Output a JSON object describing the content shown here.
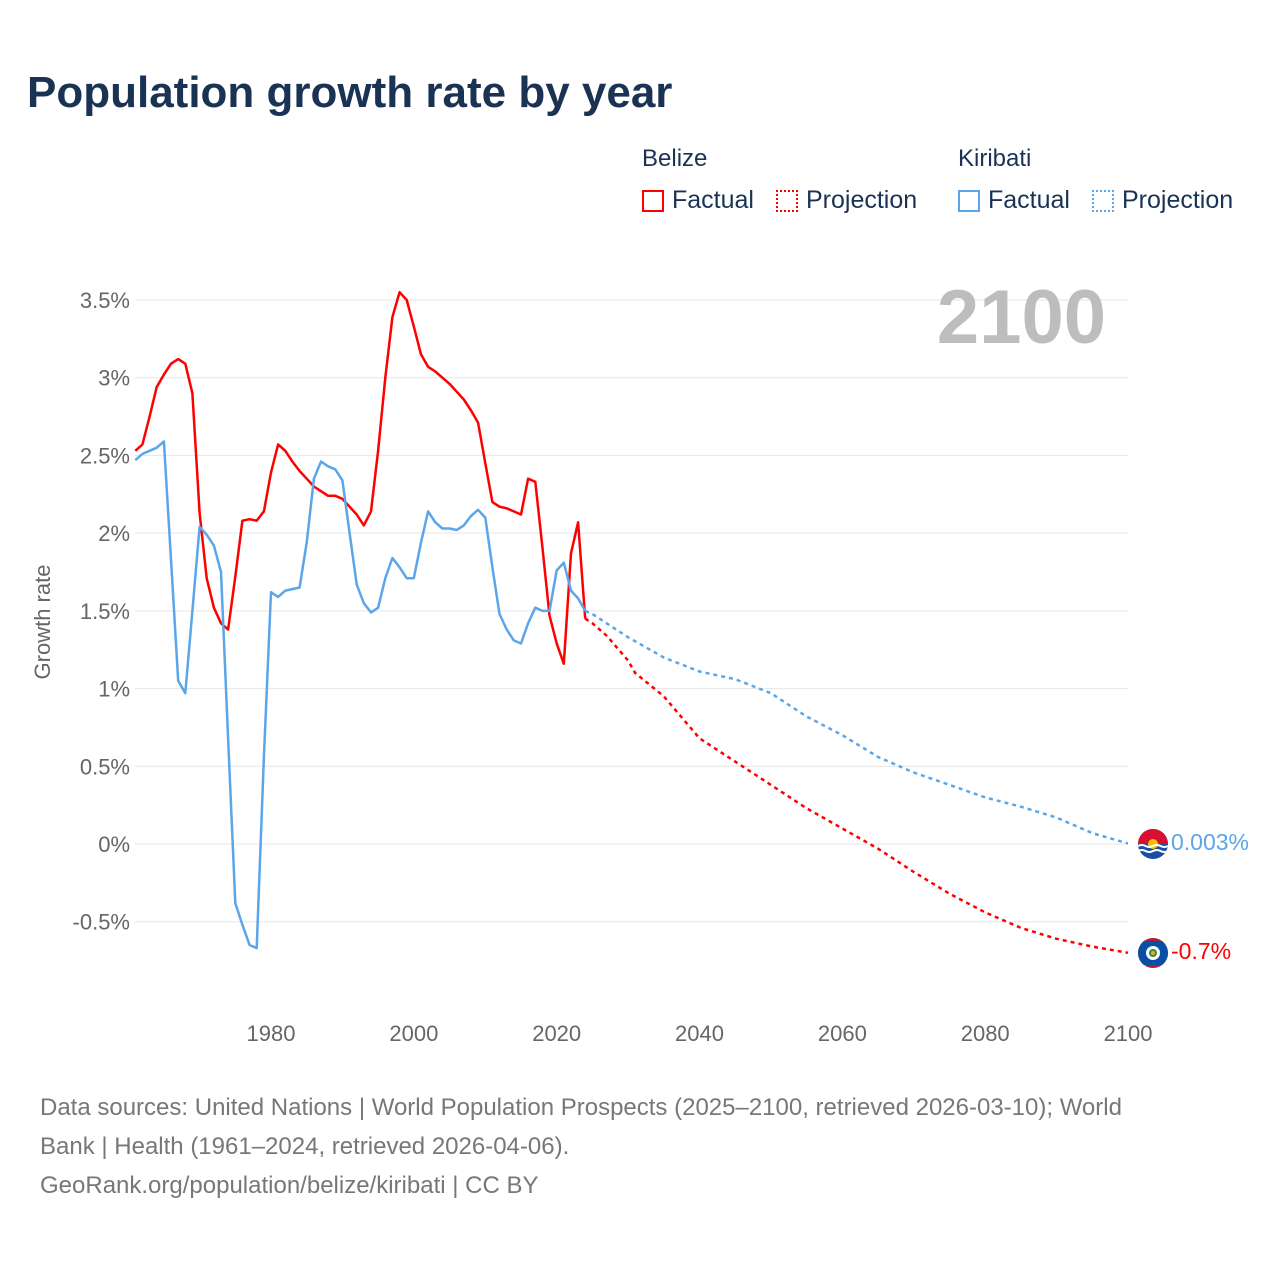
{
  "title": "Population growth rate by year",
  "legend": {
    "groups": [
      {
        "name": "Belize",
        "factual": "Factual",
        "projection": "Projection",
        "color": "#ff0000"
      },
      {
        "name": "Kiribati",
        "factual": "Factual",
        "projection": "Projection",
        "color": "#5ba6ea"
      }
    ]
  },
  "footer": {
    "line1": "Data sources: United Nations | World Population Prospects (2025–2100, retrieved 2026-03-10); World",
    "line2": "Bank | Health (1961–2024, retrieved 2026-04-06).",
    "line3": "GeoRank.org/population/belize/kiribati | CC BY"
  },
  "chart_data": {
    "type": "line",
    "title": "Population growth rate by year",
    "ylabel": "Growth rate",
    "xlabel": "",
    "year_label": "2100",
    "xlim": [
      1961,
      2100
    ],
    "ylim": [
      -0.85,
      3.6
    ],
    "xticks": [
      1980,
      2000,
      2020,
      2040,
      2060,
      2080,
      2100
    ],
    "yticks": [
      -0.5,
      0,
      0.5,
      1,
      1.5,
      2,
      2.5,
      3,
      3.5
    ],
    "ytick_labels": [
      "-0.5%",
      "0%",
      "0.5%",
      "1%",
      "1.5%",
      "2%",
      "2.5%",
      "3%",
      "3.5%"
    ],
    "grid": true,
    "legend_position": "top-right",
    "series": [
      {
        "name": "Belize",
        "color": "#ff0000",
        "end_label": "-0.7%",
        "factual_start": 1961,
        "factual": [
          2.53,
          2.57,
          2.75,
          2.94,
          3.02,
          3.09,
          3.12,
          3.09,
          2.9,
          2.13,
          1.71,
          1.52,
          1.42,
          1.38,
          1.72,
          2.08,
          2.09,
          2.08,
          2.14,
          2.39,
          2.57,
          2.53,
          2.46,
          2.4,
          2.35,
          2.3,
          2.27,
          2.24,
          2.24,
          2.22,
          2.17,
          2.12,
          2.05,
          2.14,
          2.53,
          3.0,
          3.39,
          3.55,
          3.5,
          3.33,
          3.15,
          3.07,
          3.04,
          3.0,
          2.96,
          2.91,
          2.86,
          2.79,
          2.71,
          2.45,
          2.2,
          2.17,
          2.16,
          2.14,
          2.12,
          2.35,
          2.33,
          1.91,
          1.47,
          1.29,
          1.16,
          1.87,
          2.07,
          1.45
        ],
        "projection": [
          [
            2024,
            1.45
          ],
          [
            2025,
            1.42
          ],
          [
            2027,
            1.34
          ],
          [
            2030,
            1.18
          ],
          [
            2031,
            1.1
          ],
          [
            2035,
            0.95
          ],
          [
            2040,
            0.68
          ],
          [
            2045,
            0.53
          ],
          [
            2050,
            0.38
          ],
          [
            2055,
            0.23
          ],
          [
            2060,
            0.1
          ],
          [
            2065,
            -0.03
          ],
          [
            2070,
            -0.18
          ],
          [
            2075,
            -0.32
          ],
          [
            2080,
            -0.44
          ],
          [
            2085,
            -0.54
          ],
          [
            2090,
            -0.61
          ],
          [
            2095,
            -0.66
          ],
          [
            2100,
            -0.7
          ]
        ]
      },
      {
        "name": "Kiribati",
        "color": "#5ba6ea",
        "end_label": "0.003%",
        "factual_start": 1961,
        "factual": [
          2.47,
          2.51,
          2.53,
          2.55,
          2.59,
          1.83,
          1.05,
          0.97,
          1.5,
          2.04,
          1.99,
          1.92,
          1.75,
          0.68,
          -0.38,
          -0.52,
          -0.65,
          -0.67,
          0.56,
          1.62,
          1.59,
          1.63,
          1.64,
          1.65,
          1.94,
          2.35,
          2.46,
          2.43,
          2.41,
          2.34,
          2.0,
          1.67,
          1.55,
          1.49,
          1.52,
          1.71,
          1.84,
          1.78,
          1.71,
          1.71,
          1.94,
          2.14,
          2.07,
          2.03,
          2.03,
          2.02,
          2.05,
          2.11,
          2.15,
          2.1,
          1.78,
          1.48,
          1.38,
          1.31,
          1.29,
          1.42,
          1.52,
          1.5,
          1.5,
          1.76,
          1.81,
          1.63,
          1.58,
          1.5
        ],
        "projection": [
          [
            2024,
            1.5
          ],
          [
            2025,
            1.48
          ],
          [
            2030,
            1.33
          ],
          [
            2035,
            1.2
          ],
          [
            2040,
            1.11
          ],
          [
            2045,
            1.06
          ],
          [
            2050,
            0.97
          ],
          [
            2055,
            0.82
          ],
          [
            2060,
            0.7
          ],
          [
            2065,
            0.56
          ],
          [
            2070,
            0.46
          ],
          [
            2075,
            0.38
          ],
          [
            2080,
            0.3
          ],
          [
            2085,
            0.24
          ],
          [
            2090,
            0.17
          ],
          [
            2095,
            0.07
          ],
          [
            2100,
            0.003
          ]
        ]
      }
    ]
  }
}
